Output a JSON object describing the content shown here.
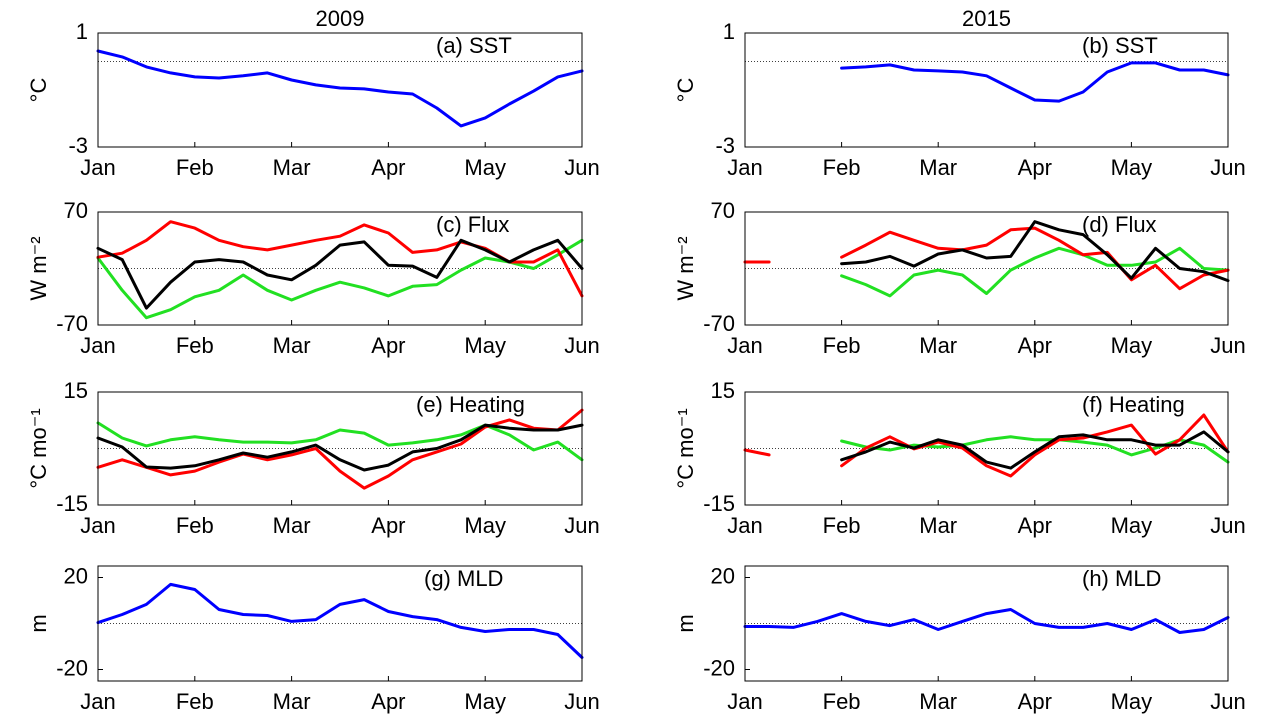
{
  "chart_data": [
    {
      "type": "line",
      "title": "2009",
      "annotation": "(a) SST",
      "ylabel": "°C",
      "x": [
        0,
        0.25,
        0.5,
        0.75,
        1,
        1.25,
        1.5,
        1.75,
        2,
        2.25,
        2.5,
        2.75,
        3,
        3.25,
        3.5,
        3.75,
        4,
        4.25,
        4.5,
        4.75,
        5
      ],
      "xlim": [
        0,
        5
      ],
      "xticks": [
        {
          "value": 0,
          "label": "Jan"
        },
        {
          "value": 1,
          "label": "Feb"
        },
        {
          "value": 2,
          "label": "Mar"
        },
        {
          "value": 3,
          "label": "Apr"
        },
        {
          "value": 4,
          "label": "May"
        },
        {
          "value": 5,
          "label": "Jun"
        }
      ],
      "ylim": [
        -3,
        1
      ],
      "yticks": [
        -3,
        1
      ],
      "reference_line": 0,
      "series": [
        {
          "color": "#0000ff",
          "values": [
            0.37,
            0.16,
            -0.19,
            -0.4,
            -0.54,
            -0.58,
            -0.5,
            -0.4,
            -0.65,
            -0.82,
            -0.93,
            -0.96,
            -1.07,
            -1.14,
            -1.63,
            -2.26,
            -1.98,
            -1.49,
            -1.04,
            -0.54,
            -0.33
          ]
        }
      ]
    },
    {
      "type": "line",
      "title": "2015",
      "annotation": "(b) SST",
      "ylabel": "°C",
      "x": [
        0,
        0.25,
        0.5,
        0.75,
        1,
        1.25,
        1.5,
        1.75,
        2,
        2.25,
        2.5,
        2.75,
        3,
        3.25,
        3.5,
        3.75,
        4,
        4.25,
        4.5,
        4.75,
        5
      ],
      "xlim": [
        0,
        5
      ],
      "xticks": [
        {
          "value": 0,
          "label": "Jan"
        },
        {
          "value": 1,
          "label": "Feb"
        },
        {
          "value": 2,
          "label": "Mar"
        },
        {
          "value": 3,
          "label": "Apr"
        },
        {
          "value": 4,
          "label": "May"
        },
        {
          "value": 5,
          "label": "Jun"
        }
      ],
      "ylim": [
        -3,
        1
      ],
      "yticks": [
        -3,
        1
      ],
      "reference_line": 0,
      "series": [
        {
          "color": "#0000ff",
          "values": [
            null,
            null,
            null,
            null,
            -0.23,
            -0.19,
            -0.12,
            -0.3,
            -0.33,
            -0.37,
            -0.5,
            -0.93,
            -1.35,
            -1.39,
            -1.07,
            -0.37,
            -0.05,
            -0.05,
            -0.3,
            -0.3,
            -0.47
          ]
        }
      ]
    },
    {
      "type": "line",
      "annotation": "(c) Flux",
      "ylabel": "W m⁻²",
      "x": [
        0,
        0.25,
        0.5,
        0.75,
        1,
        1.25,
        1.5,
        1.75,
        2,
        2.25,
        2.5,
        2.75,
        3,
        3.25,
        3.5,
        3.75,
        4,
        4.25,
        4.5,
        4.75,
        5
      ],
      "xlim": [
        0,
        5
      ],
      "xticks": [
        {
          "value": 0,
          "label": "Jan"
        },
        {
          "value": 1,
          "label": "Feb"
        },
        {
          "value": 2,
          "label": "Mar"
        },
        {
          "value": 3,
          "label": "Apr"
        },
        {
          "value": 4,
          "label": "May"
        },
        {
          "value": 5,
          "label": "Jun"
        }
      ],
      "ylim": [
        -70,
        70
      ],
      "yticks": [
        -70,
        70
      ],
      "reference_line": 0,
      "series": [
        {
          "color": "#22e022",
          "values": [
            13,
            -27,
            -61,
            -51,
            -35,
            -27,
            -8,
            -27,
            -39,
            -27,
            -17,
            -24,
            -34,
            -22,
            -20,
            -2,
            13,
            8,
            0,
            17,
            35
          ]
        },
        {
          "color": "#ff0000",
          "values": [
            14,
            19,
            35,
            58,
            50,
            35,
            27,
            23,
            29,
            35,
            40,
            54,
            44,
            20,
            23,
            33,
            25,
            8,
            8,
            23,
            -34
          ]
        },
        {
          "color": "#000000",
          "values": [
            25,
            11,
            -49,
            -17,
            8,
            11,
            8,
            -8,
            -14,
            4,
            29,
            33,
            4,
            3,
            -11,
            35,
            23,
            8,
            23,
            35,
            0
          ]
        }
      ]
    },
    {
      "type": "line",
      "annotation": "(d) Flux",
      "ylabel": "W m⁻²",
      "x": [
        0,
        0.25,
        0.5,
        0.75,
        1,
        1.25,
        1.5,
        1.75,
        2,
        2.25,
        2.5,
        2.75,
        3,
        3.25,
        3.5,
        3.75,
        4,
        4.25,
        4.5,
        4.75,
        5
      ],
      "xlim": [
        0,
        5
      ],
      "xticks": [
        {
          "value": 0,
          "label": "Jan"
        },
        {
          "value": 1,
          "label": "Feb"
        },
        {
          "value": 2,
          "label": "Mar"
        },
        {
          "value": 3,
          "label": "Apr"
        },
        {
          "value": 4,
          "label": "May"
        },
        {
          "value": 5,
          "label": "Jun"
        }
      ],
      "ylim": [
        -70,
        70
      ],
      "yticks": [
        -70,
        70
      ],
      "reference_line": 0,
      "series": [
        {
          "color": "#22e022",
          "values": [
            null,
            null,
            null,
            null,
            -9,
            -20,
            -34,
            -8,
            -2,
            -8,
            -31,
            -2,
            13,
            25,
            17,
            4,
            4,
            8,
            25,
            0,
            -2
          ]
        },
        {
          "color": "#ff0000",
          "values": [
            8,
            8,
            null,
            null,
            14,
            29,
            45,
            35,
            25,
            23,
            29,
            48,
            50,
            35,
            17,
            20,
            -14,
            4,
            -25,
            -8,
            -2
          ]
        },
        {
          "color": "#000000",
          "values": [
            null,
            null,
            null,
            null,
            6,
            8,
            15,
            3,
            18,
            23,
            13,
            15,
            58,
            48,
            42,
            17,
            -12,
            25,
            0,
            -4,
            -15
          ]
        }
      ]
    },
    {
      "type": "line",
      "annotation": "(e) Heating",
      "ylabel": "°C mo⁻¹",
      "x": [
        0,
        0.25,
        0.5,
        0.75,
        1,
        1.25,
        1.5,
        1.75,
        2,
        2.25,
        2.5,
        2.75,
        3,
        3.25,
        3.5,
        3.75,
        4,
        4.25,
        4.5,
        4.75,
        5
      ],
      "xlim": [
        0,
        5
      ],
      "xticks": [
        {
          "value": 0,
          "label": "Jan"
        },
        {
          "value": 1,
          "label": "Feb"
        },
        {
          "value": 2,
          "label": "Mar"
        },
        {
          "value": 3,
          "label": "Apr"
        },
        {
          "value": 4,
          "label": "May"
        },
        {
          "value": 5,
          "label": "Jun"
        }
      ],
      "ylim": [
        -15,
        15
      ],
      "yticks": [
        -15,
        15
      ],
      "reference_line": 0,
      "series": [
        {
          "color": "#22e022",
          "values": [
            6.8,
            2.8,
            0.7,
            2.3,
            3.1,
            2.3,
            1.7,
            1.7,
            1.5,
            2.3,
            4.9,
            4.1,
            0.9,
            1.5,
            2.3,
            3.6,
            6.2,
            3.6,
            -0.4,
            1.7,
            -3
          ]
        },
        {
          "color": "#ff0000",
          "values": [
            -5,
            -3,
            -5,
            -7,
            -6,
            -3.6,
            -1.5,
            -3,
            -1.7,
            0,
            -6,
            -10.5,
            -7.3,
            -3,
            -0.9,
            1.2,
            5.7,
            7.6,
            5.4,
            4.9,
            10.2
          ]
        },
        {
          "color": "#000000",
          "values": [
            2.8,
            0.4,
            -4.9,
            -5.2,
            -4.6,
            -3,
            -1.2,
            -2.3,
            -0.9,
            0.9,
            -3,
            -5.7,
            -4.4,
            -0.9,
            0,
            2.3,
            6.2,
            5.4,
            4.9,
            4.9,
            6.2
          ]
        }
      ]
    },
    {
      "type": "line",
      "annotation": "(f) Heating",
      "ylabel": "°C mo⁻¹",
      "x": [
        0,
        0.25,
        0.5,
        0.75,
        1,
        1.25,
        1.5,
        1.75,
        2,
        2.25,
        2.5,
        2.75,
        3,
        3.25,
        3.5,
        3.75,
        4,
        4.25,
        4.5,
        4.75,
        5
      ],
      "xlim": [
        0,
        5
      ],
      "xticks": [
        {
          "value": 0,
          "label": "Jan"
        },
        {
          "value": 1,
          "label": "Feb"
        },
        {
          "value": 2,
          "label": "Mar"
        },
        {
          "value": 3,
          "label": "Apr"
        },
        {
          "value": 4,
          "label": "May"
        },
        {
          "value": 5,
          "label": "Jun"
        }
      ],
      "ylim": [
        -15,
        15
      ],
      "yticks": [
        -15,
        15
      ],
      "reference_line": 0,
      "series": [
        {
          "color": "#22e022",
          "values": [
            null,
            null,
            null,
            null,
            2,
            0.4,
            -0.4,
            0.9,
            0.4,
            0.9,
            2.3,
            3.1,
            2.3,
            2.3,
            1.7,
            0.9,
            -1.7,
            0.1,
            2.3,
            0.9,
            -3.6
          ]
        },
        {
          "color": "#ff0000",
          "values": [
            -0.4,
            -1.7,
            null,
            null,
            -4.6,
            0.1,
            3.1,
            -0.1,
            1.7,
            0.1,
            -4.6,
            -7.3,
            -1.7,
            2.3,
            2.8,
            4.4,
            6.2,
            -1.5,
            2.3,
            8.9,
            -0.9
          ]
        },
        {
          "color": "#000000",
          "values": [
            null,
            null,
            null,
            null,
            -3,
            -0.9,
            1.7,
            0.1,
            2.3,
            0.9,
            -3.6,
            -5.2,
            -0.9,
            3.1,
            3.6,
            2.3,
            2.3,
            0.9,
            0.9,
            4.4,
            -0.9
          ]
        }
      ]
    },
    {
      "type": "line",
      "annotation": "(g) MLD",
      "ylabel": "m",
      "x": [
        0,
        0.25,
        0.5,
        0.75,
        1,
        1.25,
        1.5,
        1.75,
        2,
        2.25,
        2.5,
        2.75,
        3,
        3.25,
        3.5,
        3.75,
        4,
        4.25,
        4.5,
        4.75,
        5
      ],
      "xlim": [
        0,
        5
      ],
      "xticks": [
        {
          "value": 0,
          "label": "Jan"
        },
        {
          "value": 1,
          "label": "Feb"
        },
        {
          "value": 2,
          "label": "Mar"
        },
        {
          "value": 3,
          "label": "Apr"
        },
        {
          "value": 4,
          "label": "May"
        },
        {
          "value": 5,
          "label": "Jun"
        }
      ],
      "ylim": [
        -25,
        25
      ],
      "yticks": [
        -20,
        20
      ],
      "reference_line": 0,
      "series": [
        {
          "color": "#0000ff",
          "values": [
            0.4,
            3.9,
            8.3,
            17,
            14.8,
            6.1,
            3.9,
            3.5,
            0.9,
            1.7,
            8.3,
            10.4,
            5.2,
            3,
            1.7,
            -1.7,
            -3.5,
            -2.6,
            -2.6,
            -4.8,
            -14.8
          ]
        }
      ]
    },
    {
      "type": "line",
      "annotation": "(h) MLD",
      "ylabel": "m",
      "x": [
        0,
        0.25,
        0.5,
        0.75,
        1,
        1.25,
        1.5,
        1.75,
        2,
        2.25,
        2.5,
        2.75,
        3,
        3.25,
        3.5,
        3.75,
        4,
        4.25,
        4.5,
        4.75,
        5
      ],
      "xlim": [
        0,
        5
      ],
      "xticks": [
        {
          "value": 0,
          "label": "Jan"
        },
        {
          "value": 1,
          "label": "Feb"
        },
        {
          "value": 2,
          "label": "Mar"
        },
        {
          "value": 3,
          "label": "Apr"
        },
        {
          "value": 4,
          "label": "May"
        },
        {
          "value": 5,
          "label": "Jun"
        }
      ],
      "ylim": [
        -25,
        25
      ],
      "yticks": [
        -20,
        20
      ],
      "reference_line": 0,
      "series": [
        {
          "color": "#0000ff",
          "values": [
            -1.3,
            -1.3,
            -1.7,
            0.9,
            4.3,
            0.9,
            -0.9,
            1.7,
            -2.6,
            0.9,
            4.3,
            6.1,
            0,
            -1.7,
            -1.7,
            0,
            -2.6,
            1.7,
            -3.9,
            -2.6,
            2.6
          ]
        }
      ]
    }
  ]
}
